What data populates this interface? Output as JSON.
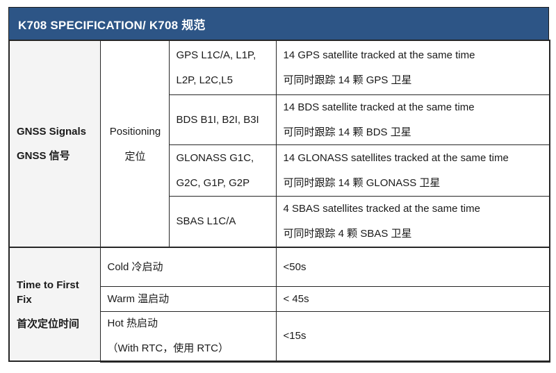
{
  "header": {
    "title": "K708 SPECIFICATION/ K708 规范"
  },
  "colors": {
    "title_bar_bg": "#2d5586",
    "title_text": "#ffffff",
    "row_label_bg": "#f4f4f4",
    "border": "#262626"
  },
  "gnss_section": {
    "row_label_en": "GNSS Signals",
    "row_label_zh": "GNSS 信号",
    "sub_label_en": "Positioning",
    "sub_label_zh": "定位",
    "rows": [
      {
        "signal_line1": "GPS L1C/A, L1P,",
        "signal_line2": "L2P, L2C,L5",
        "desc_en": "14 GPS satellite tracked at the same time",
        "desc_zh": "可同时跟踪 14 颗 GPS 卫星"
      },
      {
        "signal_line1": "BDS B1I, B2I, B3I",
        "signal_line2": "",
        "desc_en": "14 BDS satellite tracked at the same time",
        "desc_zh": "可同时跟踪 14 颗 BDS 卫星"
      },
      {
        "signal_line1": "GLONASS G1C,",
        "signal_line2": "G2C, G1P, G2P",
        "desc_en": "14 GLONASS satellites tracked at the same time",
        "desc_zh": "可同时跟踪 14 颗 GLONASS 卫星"
      },
      {
        "signal_line1": "SBAS L1C/A",
        "signal_line2": "",
        "desc_en": "4 SBAS satellites tracked at the same time",
        "desc_zh": "可同时跟踪 4 颗 SBAS 卫星"
      }
    ]
  },
  "ttff_section": {
    "row_label_en": "Time to First Fix",
    "row_label_zh": "首次定位时间",
    "rows": [
      {
        "mode_line1": "Cold 冷启动",
        "mode_line2": "",
        "value": "<50s"
      },
      {
        "mode_line1": "Warm 温启动",
        "mode_line2": "",
        "value": "< 45s"
      },
      {
        "mode_line1": "Hot 热启动",
        "mode_line2": "（With RTC，使用  RTC）",
        "value": "<15s"
      }
    ]
  }
}
